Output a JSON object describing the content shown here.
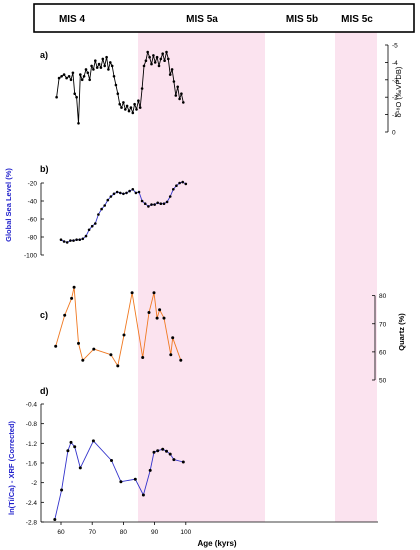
{
  "figure": {
    "stages": [
      "MIS 4",
      "MIS 5a",
      "MIS 5b",
      "MIS 5c"
    ],
    "xlabel": "Age (kyrs)",
    "x_ticks": [
      60,
      70,
      80,
      90,
      100
    ],
    "highlight_color": "#fbe3ef"
  },
  "chart_data": [
    {
      "type": "line",
      "panel": "a)",
      "ylabel": "δ¹⁸O (‰VPDB)",
      "y_ticks": [
        -5,
        -4,
        -3,
        -2,
        -1,
        0
      ],
      "ylim": [
        0,
        -5
      ],
      "axis_side": "right",
      "color": "#000000",
      "x": [
        58.6,
        59.4,
        60.2,
        61.0,
        61.8,
        62.6,
        63.2,
        63.8,
        64.4,
        65.0,
        65.6,
        66.2,
        66.8,
        67.4,
        68.0,
        68.6,
        69.2,
        69.8,
        70.4,
        71.0,
        71.6,
        72.2,
        72.8,
        73.4,
        74.0,
        74.6,
        75.2,
        75.8,
        76.4,
        77.0,
        77.6,
        78.2,
        78.8,
        79.4,
        80.0,
        80.6,
        81.2,
        81.8,
        82.4,
        83.0,
        83.6,
        84.2,
        84.8,
        85.4,
        86.0,
        86.6,
        87.2,
        87.8,
        88.4,
        89.0,
        89.6,
        90.2,
        90.8,
        91.4,
        92.0,
        92.6,
        93.2,
        93.8,
        94.4,
        95.0,
        95.6,
        96.2,
        96.8,
        97.4,
        98.0,
        98.6,
        99.2
      ],
      "y": [
        -2.0,
        -3.1,
        -3.2,
        -3.3,
        -3.1,
        -3.2,
        -3.0,
        -3.4,
        -2.2,
        -2.0,
        -0.5,
        -3.3,
        -3.0,
        -3.2,
        -3.6,
        -3.4,
        -3.0,
        -3.8,
        -3.6,
        -4.1,
        -3.7,
        -3.9,
        -3.7,
        -4.2,
        -3.8,
        -4.3,
        -3.6,
        -4.0,
        -3.8,
        -3.2,
        -2.7,
        -2.2,
        -1.6,
        -1.4,
        -1.7,
        -1.3,
        -1.5,
        -1.2,
        -1.4,
        -1.1,
        -1.6,
        -1.3,
        -1.8,
        -1.4,
        -2.5,
        -3.8,
        -4.1,
        -4.6,
        -4.3,
        -3.9,
        -4.4,
        -4.0,
        -4.3,
        -3.8,
        -4.2,
        -4.5,
        -4.1,
        -4.6,
        -4.2,
        -3.3,
        -3.6,
        -2.9,
        -2.1,
        -2.6,
        -1.9,
        -2.2,
        -1.7
      ]
    },
    {
      "type": "line",
      "panel": "b)",
      "ylabel": "Global Sea Level (%)",
      "y_ticks": [
        -20,
        -40,
        -60,
        -80,
        -100
      ],
      "ylim": [
        -100,
        -10
      ],
      "axis_side": "left",
      "color": "#3333cc",
      "x": [
        60,
        61,
        62,
        63,
        64,
        65,
        66,
        67,
        68,
        69,
        70,
        71,
        72,
        73,
        74,
        75,
        76,
        77,
        78,
        79,
        80,
        81,
        82,
        83,
        84,
        85,
        86,
        87,
        88,
        89,
        90,
        91,
        92,
        93,
        94,
        95,
        96,
        97,
        98,
        99,
        100
      ],
      "y": [
        -83,
        -85,
        -86,
        -84,
        -84,
        -83,
        -83,
        -82,
        -79,
        -72,
        -68,
        -65,
        -55,
        -49,
        -45,
        -39,
        -35,
        -32,
        -30,
        -31,
        -32,
        -31,
        -29,
        -27,
        -31,
        -30,
        -40,
        -43,
        -46,
        -44,
        -44,
        -42,
        -43,
        -43,
        -41,
        -35,
        -27,
        -23,
        -20,
        -19,
        -21
      ]
    },
    {
      "type": "line",
      "panel": "c)",
      "ylabel": "Quartz (%)",
      "y_ticks": [
        50,
        60,
        70,
        80
      ],
      "ylim": [
        50,
        82
      ],
      "axis_side": "right",
      "color": "#f07820",
      "x": [
        58.3,
        61.2,
        63.4,
        64.2,
        65.6,
        67.0,
        70.5,
        76.0,
        78.2,
        80.2,
        82.8,
        86.2,
        88.2,
        89.8,
        90.8,
        91.6,
        93.0,
        95.2,
        95.8,
        98.4
      ],
      "y": [
        62,
        73,
        79,
        83,
        63,
        57,
        61,
        59,
        55,
        66,
        81,
        58,
        74,
        81,
        72,
        75,
        72,
        59,
        65,
        57
      ]
    },
    {
      "type": "line",
      "panel": "d)",
      "ylabel": "ln(Ti/Ca) - XRF (Corrected)",
      "y_ticks": [
        -0.4,
        -0.8,
        -1.2,
        -1.6,
        -2.0,
        -2.4,
        -2.8
      ],
      "ylim": [
        -2.8,
        -0.4
      ],
      "axis_side": "left",
      "color": "#3333cc",
      "x": [
        58.0,
        60.2,
        62.2,
        63.2,
        64.4,
        66.2,
        70.4,
        76.2,
        79.2,
        83.8,
        86.4,
        88.6,
        89.8,
        91.0,
        92.6,
        93.8,
        95.0,
        96.2,
        99.2
      ],
      "y": [
        -2.75,
        -2.15,
        -1.35,
        -1.18,
        -1.27,
        -1.7,
        -1.15,
        -1.55,
        -1.98,
        -1.93,
        -2.25,
        -1.75,
        -1.38,
        -1.35,
        -1.32,
        -1.36,
        -1.42,
        -1.53,
        -1.58
      ]
    }
  ]
}
